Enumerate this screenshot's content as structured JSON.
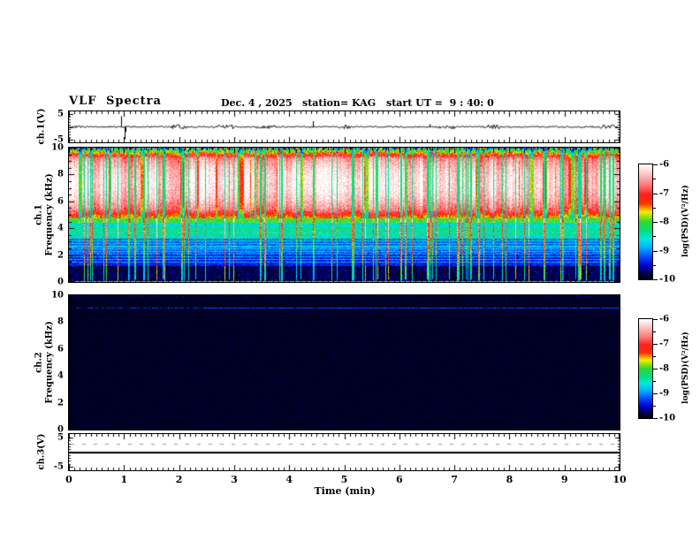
{
  "header": {
    "title": "VLF Spectra",
    "date": "Dec. 4 , 2025",
    "station": "station= KAG",
    "start_ut": "start UT =  9 : 40: 0"
  },
  "panels": {
    "ch1_wave": {
      "label": "ch.1(V)",
      "y_ticks": [
        5,
        -5
      ]
    },
    "ch1_spec": {
      "label_line1": "ch.1",
      "label_line2": "Frequency (kHz)",
      "y_ticks": [
        10,
        8,
        6,
        4,
        2,
        0
      ]
    },
    "ch2_spec": {
      "label_line1": "ch.2",
      "label_line2": "Frequency (kHz)",
      "y_ticks": [
        10,
        8,
        6,
        4,
        2,
        0
      ]
    },
    "ch3_wave": {
      "label": "ch.3(V)",
      "y_ticks": [
        5,
        -5
      ]
    }
  },
  "x_axis": {
    "title": "Time (min)",
    "ticks": [
      0,
      1,
      2,
      3,
      4,
      5,
      6,
      7,
      8,
      9,
      10
    ],
    "minor_step_min": 0.1
  },
  "colorbar": {
    "label": "log(PSD)(V²/Hz)",
    "ticks": [
      -6,
      -7,
      -8,
      -9,
      -10
    ],
    "range": [
      -6,
      -10
    ]
  },
  "colormap": {
    "stops": [
      [
        0.0,
        "#000008"
      ],
      [
        0.05,
        "#00004a"
      ],
      [
        0.12,
        "#0000d2"
      ],
      [
        0.2,
        "#0050ff"
      ],
      [
        0.28,
        "#00b4ff"
      ],
      [
        0.35,
        "#00e8e0"
      ],
      [
        0.42,
        "#00e080"
      ],
      [
        0.5,
        "#30d830"
      ],
      [
        0.55,
        "#a8e000"
      ],
      [
        0.585,
        "#f0f000"
      ],
      [
        0.62,
        "#ff9800"
      ],
      [
        0.66,
        "#ff3000"
      ],
      [
        0.74,
        "#ff2020"
      ],
      [
        0.82,
        "#ff7878"
      ],
      [
        0.9,
        "#ffb8b8"
      ],
      [
        0.96,
        "#ffe4e4"
      ],
      [
        1.0,
        "#ffffff"
      ]
    ]
  },
  "chart_data": [
    {
      "type": "line",
      "name": "ch1_waveform",
      "ylabel": "ch.1(V)",
      "x_range_min": [
        0,
        10
      ],
      "y_range_v": [
        -5,
        5
      ],
      "baseline_v": 0,
      "noise_amplitude_v": 0.3,
      "spikes": [
        {
          "t_min": 0.94,
          "v": 4.3
        },
        {
          "t_min": 1.01,
          "v": -5.0
        },
        {
          "t_min": 1.03,
          "v": -2.0
        },
        {
          "t_min": 4.43,
          "v": 2.3
        },
        {
          "t_min": 6.55,
          "v": 1.1
        }
      ]
    },
    {
      "type": "heatmap",
      "name": "ch1_spectrogram",
      "xlabel": "Time (min)",
      "ylabel": "ch.1 Frequency (kHz)",
      "x_range_min": [
        0,
        10
      ],
      "y_range_khz": [
        0,
        10
      ],
      "color_scale_log_psd": [
        -10,
        -6
      ],
      "bands": [
        {
          "freq_khz": [
            9.93,
            10.0
          ],
          "character": "multicolor speckle at top edge",
          "approx_log_psd": -8.0
        },
        {
          "freq_khz": [
            4.72,
            9.93
          ],
          "character": "dense vertical atmospheric streaks, white-hot cores on red",
          "approx_log_psd": -6.3
        },
        {
          "freq_khz": [
            4.45,
            4.72
          ],
          "character": "yellow-green transition band",
          "approx_log_psd": -8.0
        },
        {
          "freq_khz": [
            3.2,
            4.45
          ],
          "character": "cyan-green speckle",
          "approx_log_psd": -8.6
        },
        {
          "freq_khz": [
            1.2,
            3.2
          ],
          "character": "blue-black with cyan horizontal stripes",
          "approx_log_psd": -9.1
        },
        {
          "freq_khz": [
            0.05,
            1.2
          ],
          "character": "near-black background with sparse blue specks",
          "approx_log_psd": -9.9
        },
        {
          "freq_khz": [
            0.0,
            0.05
          ],
          "character": "green baseline stripe",
          "approx_log_psd": -8.1
        }
      ],
      "vertical_streaks": {
        "count": 78,
        "character": "thin green/cyan/orange lines spanning full height",
        "approx_log_psd": -7.8
      }
    },
    {
      "type": "heatmap",
      "name": "ch2_spectrogram",
      "xlabel": "Time (min)",
      "ylabel": "ch.2 Frequency (kHz)",
      "x_range_min": [
        0,
        10
      ],
      "y_range_khz": [
        0,
        10
      ],
      "color_scale_log_psd": [
        -10,
        -6
      ],
      "bands": [
        {
          "freq_khz": [
            0,
            10
          ],
          "character": "uniform black, no signal",
          "approx_log_psd": -10.0
        },
        {
          "freq_khz": [
            9.0,
            9.1
          ],
          "character": "dashed dark-blue horizontal line, denser toward the right",
          "approx_log_psd": -9.3
        },
        {
          "freq_khz": [
            9.93,
            10.0
          ],
          "character": "sparse dark-blue speckle at top edge",
          "approx_log_psd": -9.7
        }
      ]
    },
    {
      "type": "line",
      "name": "ch3_waveform",
      "ylabel": "ch.3(V)",
      "x_range_min": [
        0,
        10
      ],
      "y_range_v": [
        -5,
        5
      ],
      "baseline_v": 0,
      "noise_amplitude_v": 0,
      "spikes": []
    }
  ]
}
